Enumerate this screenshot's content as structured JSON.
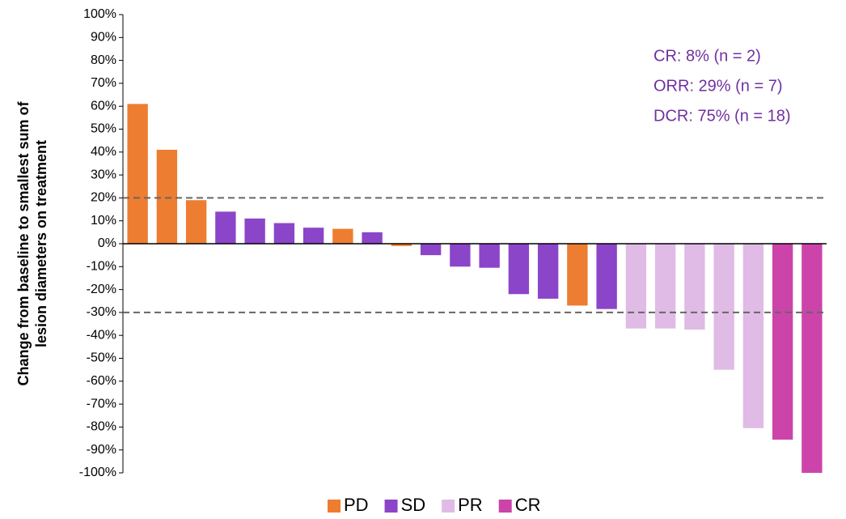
{
  "chart_data": {
    "type": "bar",
    "ylabel": [
      "Change from baseline to smallest sum of",
      "lesion diameters on treatment"
    ],
    "categories": [
      null,
      null,
      null,
      null,
      null,
      null,
      null,
      null,
      null,
      null,
      null,
      null,
      null,
      null,
      null,
      null,
      null,
      null,
      null,
      null,
      null,
      null,
      null,
      null
    ],
    "series": [
      {
        "name": "PD",
        "color": "#ed7d31",
        "values": [
          61,
          41,
          19,
          null,
          null,
          null,
          null,
          6.5,
          null,
          -1,
          null,
          null,
          null,
          null,
          null,
          -27,
          null,
          null,
          null,
          null,
          null,
          null,
          null,
          null
        ]
      },
      {
        "name": "SD",
        "color": "#8b45c9",
        "values": [
          null,
          null,
          null,
          14,
          11,
          9,
          7,
          null,
          5,
          null,
          -5,
          -10,
          -10.5,
          -22,
          -24,
          null,
          -28.5,
          null,
          null,
          null,
          null,
          null,
          null,
          null
        ]
      },
      {
        "name": "PR",
        "color": "#e0bbe6",
        "values": [
          null,
          null,
          null,
          null,
          null,
          null,
          null,
          null,
          null,
          null,
          null,
          null,
          null,
          null,
          null,
          null,
          null,
          -37,
          -37,
          -37.5,
          -55,
          -80.5,
          null,
          null
        ]
      },
      {
        "name": "CR",
        "color": "#cc44aa",
        "values": [
          null,
          null,
          null,
          null,
          null,
          null,
          null,
          null,
          null,
          null,
          null,
          null,
          null,
          null,
          null,
          null,
          null,
          null,
          null,
          null,
          null,
          null,
          -85.5,
          -100
        ]
      }
    ],
    "ylim": [
      -100,
      100
    ],
    "yticks": [
      {
        "value": 100,
        "label": "100%"
      },
      {
        "value": 90,
        "label": "90%"
      },
      {
        "value": 80,
        "label": "80%"
      },
      {
        "value": 70,
        "label": "70%"
      },
      {
        "value": 60,
        "label": "60%"
      },
      {
        "value": 50,
        "label": "50%"
      },
      {
        "value": 40,
        "label": "40%"
      },
      {
        "value": 30,
        "label": "30%"
      },
      {
        "value": 20,
        "label": "20%"
      },
      {
        "value": 10,
        "label": "10%"
      },
      {
        "value": 0,
        "label": "0%"
      },
      {
        "value": -10,
        "label": "-10%"
      },
      {
        "value": -20,
        "label": "-20%"
      },
      {
        "value": -30,
        "label": "-30%"
      },
      {
        "value": -40,
        "label": "-40%"
      },
      {
        "value": -50,
        "label": "-50%"
      },
      {
        "value": -60,
        "label": "-60%"
      },
      {
        "value": -70,
        "label": "-70%"
      },
      {
        "value": -80,
        "label": "-80%"
      },
      {
        "value": -90,
        "label": "-90%"
      },
      {
        "value": -100,
        "label": "-100%"
      }
    ],
    "reference_lines": [
      20,
      -30
    ],
    "annotations": [
      "CR: 8% (n = 2)",
      "ORR: 29% (n = 7)",
      "DCR: 75%  (n = 18)"
    ],
    "annotation_color": "#7030a0",
    "legend": "bottom"
  }
}
